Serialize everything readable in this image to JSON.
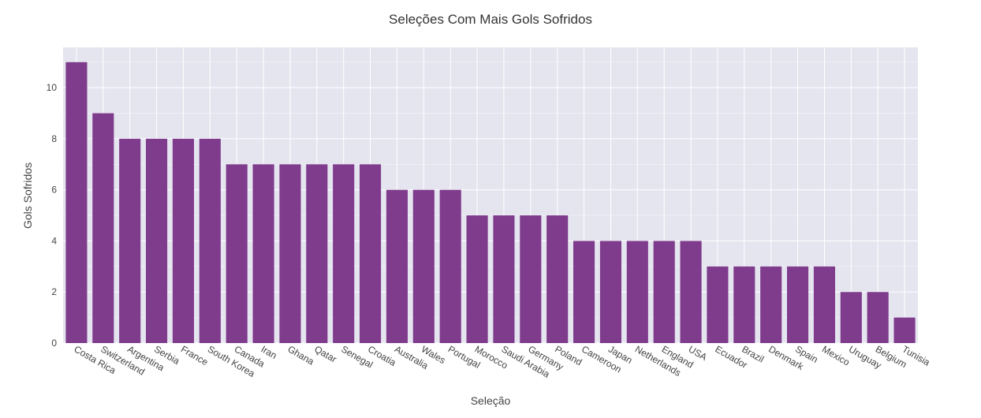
{
  "chart_data": {
    "type": "bar",
    "title": "Seleções Com Mais Gols Sofridos",
    "xlabel": "Seleção",
    "ylabel": "Gols Sofridos",
    "categories": [
      "Costa Rica",
      "Switzerland",
      "Argentina",
      "Serbia",
      "France",
      "South Korea",
      "Canada",
      "Iran",
      "Ghana",
      "Qatar",
      "Senegal",
      "Croatia",
      "Australia",
      "Wales",
      "Portugal",
      "Morocco",
      "Saudi Arabia",
      "Germany",
      "Poland",
      "Cameroon",
      "Japan",
      "Netherlands",
      "England",
      "USA",
      "Ecuador",
      "Brazil",
      "Denmark",
      "Spain",
      "Mexico",
      "Uruguay",
      "Belgium",
      "Tunisia"
    ],
    "values": [
      11,
      9,
      8,
      8,
      8,
      8,
      7,
      7,
      7,
      7,
      7,
      7,
      6,
      6,
      6,
      5,
      5,
      5,
      5,
      4,
      4,
      4,
      4,
      4,
      3,
      3,
      3,
      3,
      3,
      2,
      2,
      1
    ],
    "ylim": [
      0,
      11.58
    ],
    "yticks": [
      0,
      2,
      4,
      6,
      8,
      10
    ],
    "grid": true,
    "colors": {
      "bar": "#7f3b8c",
      "plot_bg": "#e5e5f0",
      "grid": "#ffffff",
      "text": "#444444",
      "title": "#333333"
    }
  }
}
